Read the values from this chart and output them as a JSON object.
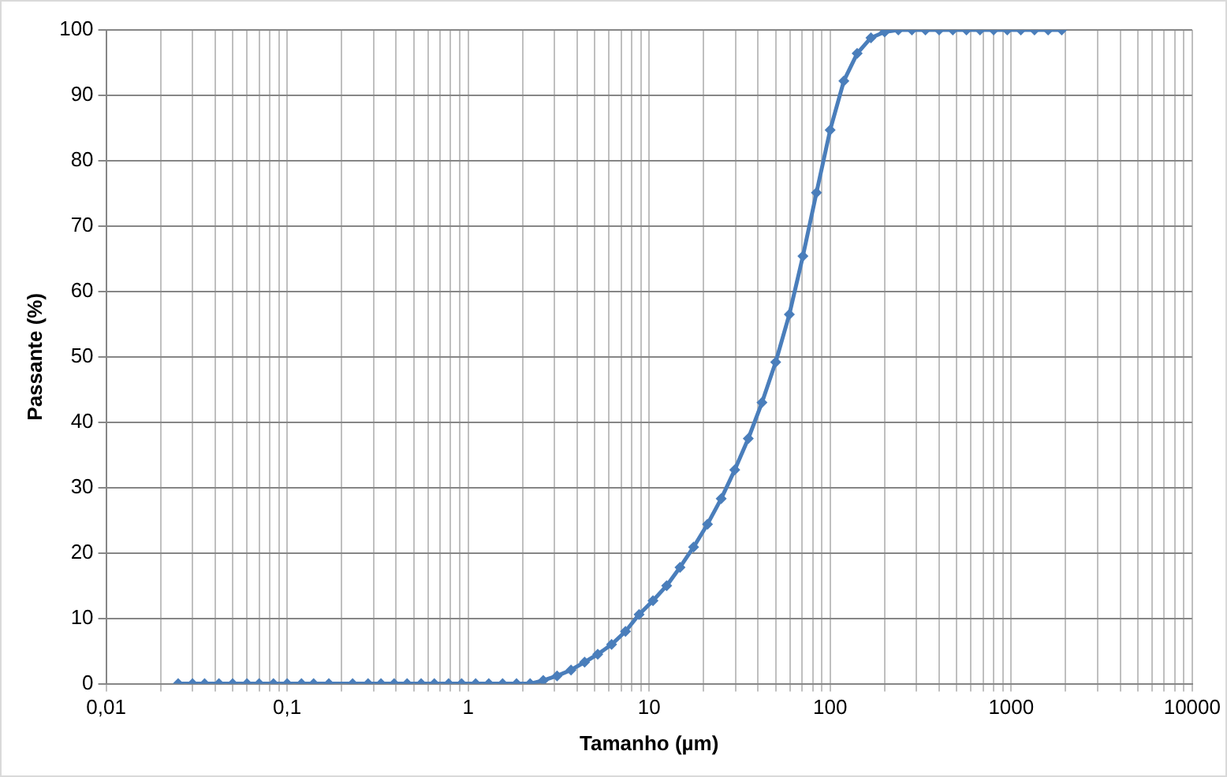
{
  "chart_data": {
    "type": "line",
    "xlabel": "Tamanho (µm)",
    "ylabel": "Passante (%)",
    "x": [
      0.025,
      0.03,
      0.035,
      0.042,
      0.05,
      0.06,
      0.07,
      0.084,
      0.1,
      0.12,
      0.14,
      0.17,
      0.23,
      0.28,
      0.33,
      0.39,
      0.46,
      0.55,
      0.65,
      0.78,
      0.92,
      1.1,
      1.3,
      1.55,
      1.85,
      2.2,
      2.6,
      3.1,
      3.7,
      4.4,
      5.2,
      6.2,
      7.4,
      8.8,
      10.5,
      12.5,
      14.8,
      17.6,
      21,
      25,
      29.7,
      35.3,
      42,
      50,
      59.5,
      70.7,
      84,
      100,
      119,
      141,
      168,
      200,
      238,
      283,
      336,
      400,
      476,
      566,
      673,
      800,
      951,
      1131,
      1345,
      1600,
      1903
    ],
    "series": [
      {
        "color": "#4a7ebb",
        "values": [
          0,
          0,
          0,
          0,
          0,
          0,
          0,
          0,
          0,
          0,
          0,
          0,
          0,
          0,
          0,
          0,
          0,
          0,
          0,
          0,
          0,
          0,
          0,
          0,
          0,
          0,
          0.5,
          1.2,
          2.1,
          3.3,
          4.5,
          6,
          8,
          10.6,
          12.7,
          15,
          17.8,
          20.9,
          24.4,
          28.3,
          32.7,
          37.5,
          43,
          49.2,
          56.5,
          65.4,
          75.1,
          84.7,
          92.2,
          96.4,
          98.8,
          99.7,
          100,
          100,
          100,
          100,
          100,
          100,
          100,
          100,
          100,
          100,
          100,
          100,
          100
        ]
      }
    ],
    "log": "x",
    "xlim": [
      0.01,
      10000
    ],
    "xticks": [
      {
        "value": 0.01,
        "label": "0,01"
      },
      {
        "value": 0.02,
        "label": null
      },
      {
        "value": 0.03,
        "label": null
      },
      {
        "value": 0.04,
        "label": null
      },
      {
        "value": 0.05,
        "label": null
      },
      {
        "value": 0.06,
        "label": null
      },
      {
        "value": 0.07,
        "label": null
      },
      {
        "value": 0.08,
        "label": null
      },
      {
        "value": 0.09,
        "label": null
      },
      {
        "value": 0.1,
        "label": "0,1"
      },
      {
        "value": 0.2,
        "label": null
      },
      {
        "value": 0.3,
        "label": null
      },
      {
        "value": 0.4,
        "label": null
      },
      {
        "value": 0.5,
        "label": null
      },
      {
        "value": 0.6,
        "label": null
      },
      {
        "value": 0.7,
        "label": null
      },
      {
        "value": 0.8,
        "label": null
      },
      {
        "value": 0.9,
        "label": null
      },
      1,
      {
        "value": 2,
        "label": null
      },
      {
        "value": 3,
        "label": null
      },
      {
        "value": 4,
        "label": null
      },
      {
        "value": 5,
        "label": null
      },
      {
        "value": 6,
        "label": null
      },
      {
        "value": 7,
        "label": null
      },
      {
        "value": 8,
        "label": null
      },
      {
        "value": 9,
        "label": null
      },
      10,
      {
        "value": 20,
        "label": null
      },
      {
        "value": 30,
        "label": null
      },
      {
        "value": 40,
        "label": null
      },
      {
        "value": 50,
        "label": null
      },
      {
        "value": 60,
        "label": null
      },
      {
        "value": 70,
        "label": null
      },
      {
        "value": 80,
        "label": null
      },
      {
        "value": 90,
        "label": null
      },
      100,
      {
        "value": 200,
        "label": null
      },
      {
        "value": 300,
        "label": null
      },
      {
        "value": 400,
        "label": null
      },
      {
        "value": 500,
        "label": null
      },
      {
        "value": 600,
        "label": null
      },
      {
        "value": 700,
        "label": null
      },
      {
        "value": 800,
        "label": null
      },
      {
        "value": 900,
        "label": null
      },
      1000,
      {
        "value": 2000,
        "label": null
      },
      {
        "value": 3000,
        "label": null
      },
      {
        "value": 4000,
        "label": null
      },
      {
        "value": 5000,
        "label": null
      },
      {
        "value": 6000,
        "label": null
      },
      {
        "value": 7000,
        "label": null
      },
      {
        "value": 8000,
        "label": null
      },
      {
        "value": 9000,
        "label": null
      },
      10000
    ],
    "ylim": [
      0,
      100
    ],
    "yticks": [
      0,
      10,
      20,
      30,
      40,
      50,
      60,
      70,
      80,
      90,
      100
    ],
    "grid": true,
    "marker": "diamond",
    "line_style": "solid",
    "legend": false
  }
}
